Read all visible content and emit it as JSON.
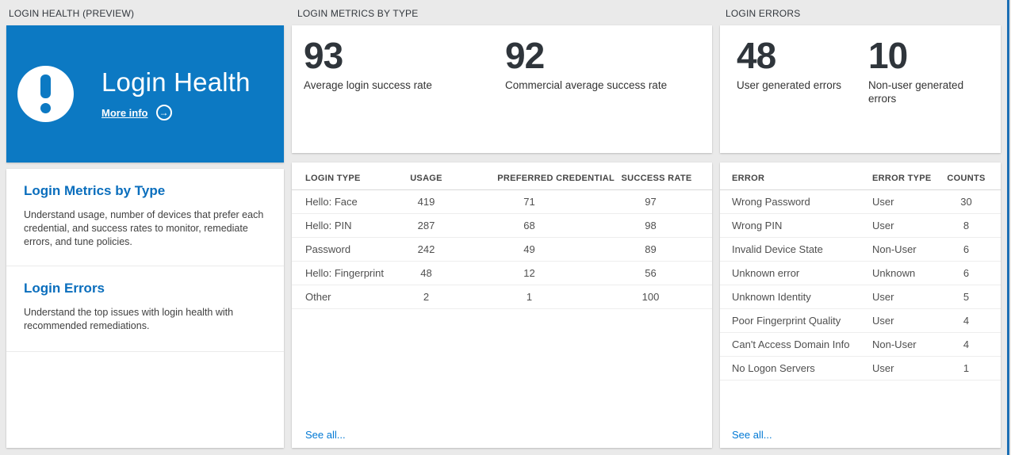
{
  "colors": {
    "page_bg": "#eaeaea",
    "tile_blue": "#0c79c3",
    "accent_link": "#0078d4",
    "heading_blue": "#0a6ebd",
    "edge_strip_blue": "#1c6fb4"
  },
  "icons": {
    "tile_icon": "exclamation-icon",
    "more_info_icon": "arrow-right-circle-icon",
    "arrow_glyph": "→"
  },
  "left": {
    "caption": "LOGIN HEALTH (PREVIEW)",
    "tile": {
      "title": "Login Health",
      "more_info": "More info"
    },
    "sections": [
      {
        "title": "Login Metrics by Type",
        "body": "Understand usage, number of devices that prefer each credential, and success rates to monitor, remediate errors, and tune policies."
      },
      {
        "title": "Login Errors",
        "body": "Understand the top issues with login health with recommended remediations."
      }
    ]
  },
  "middle": {
    "caption": "LOGIN METRICS BY TYPE",
    "stats": [
      {
        "value": "93",
        "label": "Average login success rate"
      },
      {
        "value": "92",
        "label": "Commercial average success rate"
      }
    ],
    "table": {
      "headers": [
        "LOGIN TYPE",
        "USAGE",
        "PREFERRED CREDENTIAL",
        "SUCCESS RATE"
      ],
      "rows": [
        [
          "Hello: Face",
          "419",
          "71",
          "97"
        ],
        [
          "Hello: PIN",
          "287",
          "68",
          "98"
        ],
        [
          "Password",
          "242",
          "49",
          "89"
        ],
        [
          "Hello: Fingerprint",
          "48",
          "12",
          "56"
        ],
        [
          "Other",
          "2",
          "1",
          "100"
        ]
      ]
    },
    "see_all": "See all..."
  },
  "right": {
    "caption": "LOGIN ERRORS",
    "stats": [
      {
        "value": "48",
        "label": "User generated errors"
      },
      {
        "value": "10",
        "label": "Non-user generated errors"
      }
    ],
    "table": {
      "headers": [
        "ERROR",
        "ERROR TYPE",
        "COUNTS"
      ],
      "rows": [
        [
          "Wrong Password",
          "User",
          "30"
        ],
        [
          "Wrong PIN",
          "User",
          "8"
        ],
        [
          "Invalid Device State",
          "Non-User",
          "6"
        ],
        [
          "Unknown error",
          "Unknown",
          "6"
        ],
        [
          "Unknown Identity",
          "User",
          "5"
        ],
        [
          "Poor Fingerprint Quality",
          "User",
          "4"
        ],
        [
          "Can't Access Domain Info",
          "Non-User",
          "4"
        ],
        [
          "No Logon Servers",
          "User",
          "1"
        ]
      ]
    },
    "see_all": "See all..."
  }
}
